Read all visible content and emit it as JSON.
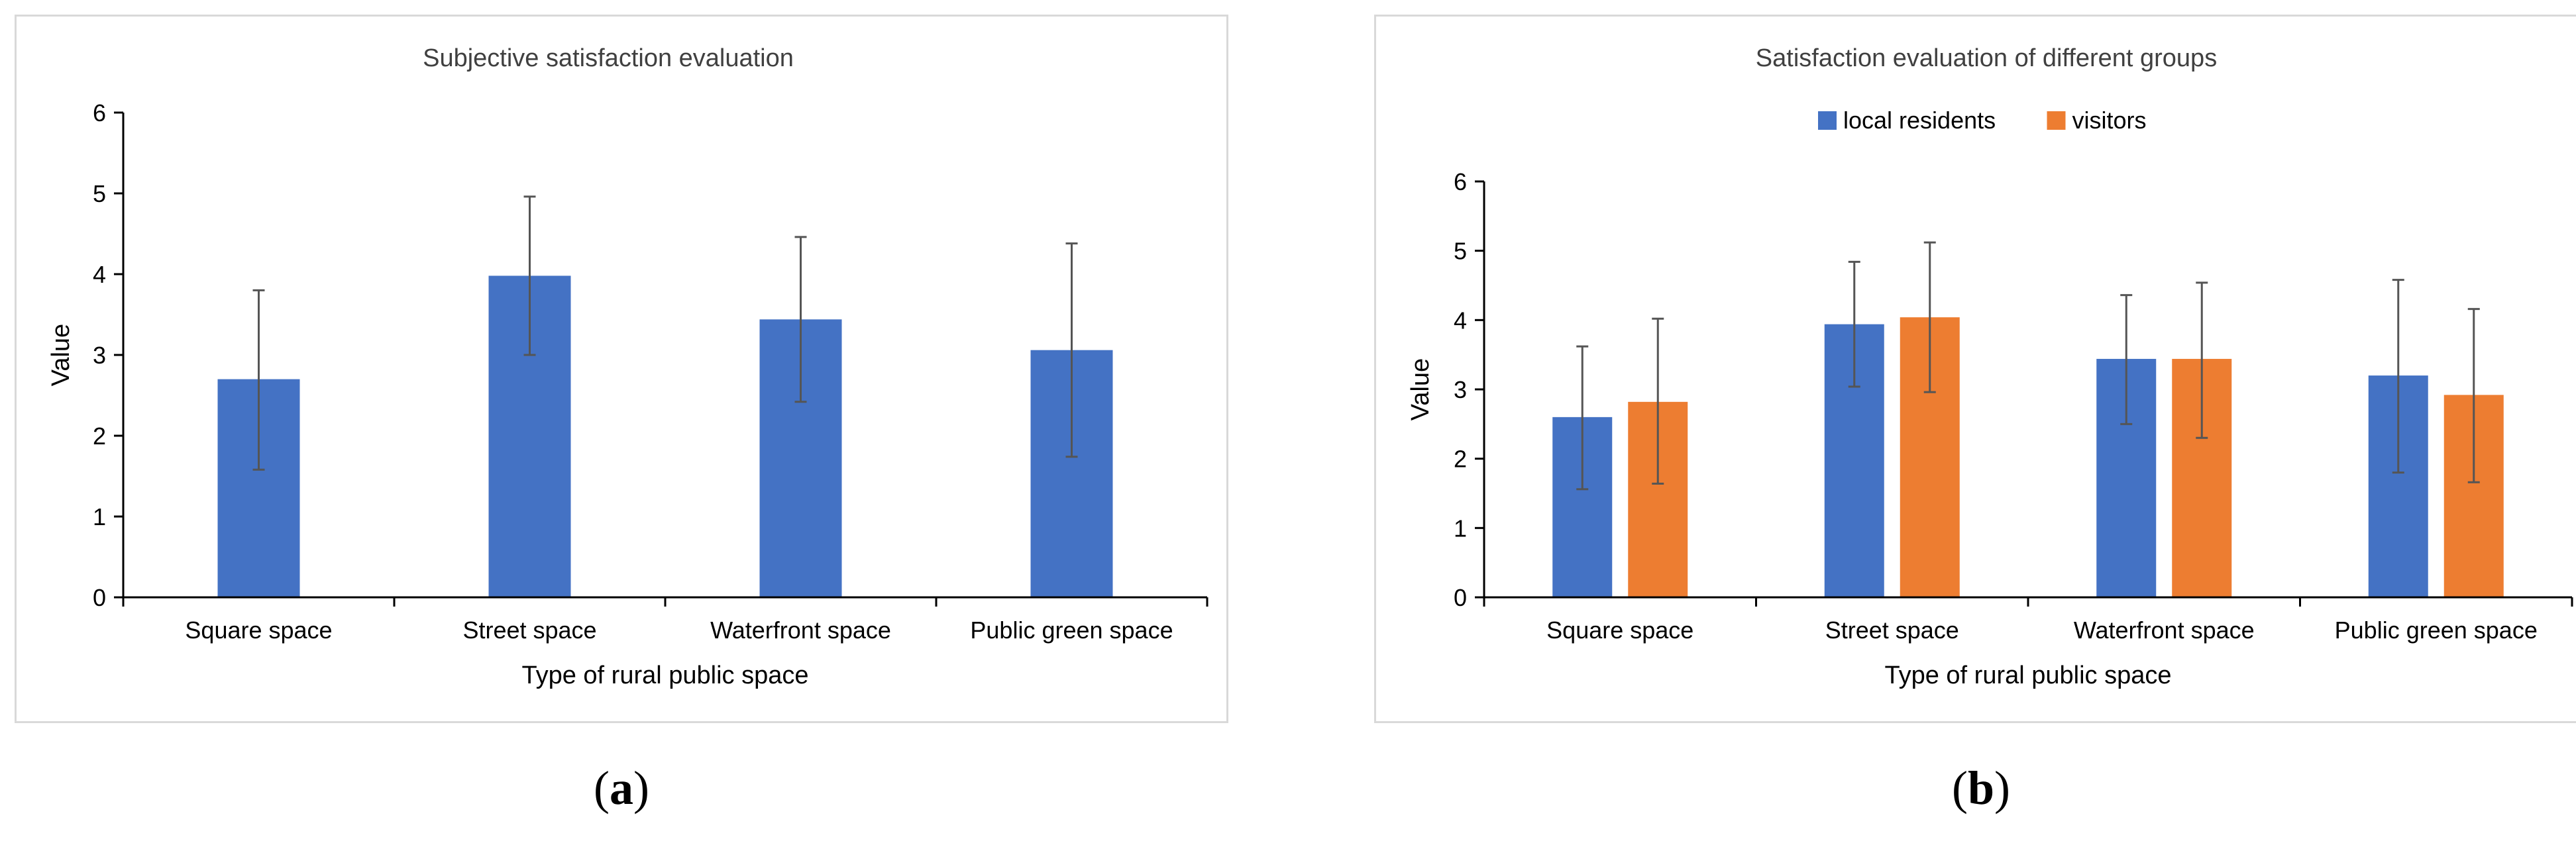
{
  "chart_data": [
    {
      "type": "bar",
      "title": "Subjective satisfaction evaluation",
      "xlabel": "Type of rural public space",
      "ylabel": "Value",
      "ylim": [
        0,
        6
      ],
      "yticks": [
        0,
        1,
        2,
        3,
        4,
        5,
        6
      ],
      "categories": [
        "Square space",
        "Street space",
        "Waterfront space",
        "Public green space"
      ],
      "series": [
        {
          "name": "",
          "color": "#4472c4",
          "values": [
            2.7,
            3.98,
            3.44,
            3.06
          ],
          "error_low": [
            1.58,
            3.0,
            2.42,
            1.74
          ],
          "error_high": [
            3.8,
            4.96,
            4.46,
            4.38
          ]
        }
      ],
      "legend": "none",
      "grid": false
    },
    {
      "type": "bar",
      "title": "Satisfaction evaluation of different groups",
      "xlabel": "Type of rural public space",
      "ylabel": "Value",
      "ylim": [
        0,
        6
      ],
      "yticks": [
        0,
        1,
        2,
        3,
        4,
        5,
        6
      ],
      "categories": [
        "Square space",
        "Street space",
        "Waterfront space",
        "Public green space"
      ],
      "series": [
        {
          "name": "local residents",
          "color": "#4472c4",
          "values": [
            2.6,
            3.94,
            3.44,
            3.2
          ],
          "error_low": [
            1.56,
            3.04,
            2.5,
            1.8
          ],
          "error_high": [
            3.62,
            4.84,
            4.36,
            4.58
          ]
        },
        {
          "name": "visitors",
          "color": "#ed7d31",
          "values": [
            2.82,
            4.04,
            3.44,
            2.92
          ],
          "error_low": [
            1.64,
            2.96,
            2.3,
            1.66
          ],
          "error_high": [
            4.02,
            5.12,
            4.54,
            4.16
          ]
        }
      ],
      "legend": "top-center",
      "grid": false
    }
  ],
  "captions": {
    "a": "a",
    "b": "b"
  }
}
